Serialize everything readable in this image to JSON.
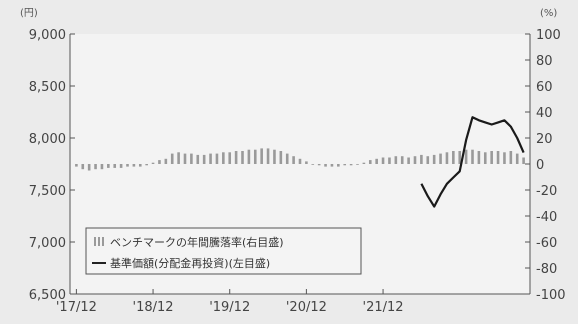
{
  "chart_data": {
    "type": "bar+line",
    "left_unit": "(円)",
    "right_unit": "(%)",
    "left_axis": {
      "min": 6500,
      "max": 9000,
      "ticks": [
        "6,500",
        "7,000",
        "7,500",
        "8,000",
        "8,500",
        "9,000"
      ]
    },
    "right_axis": {
      "min": -100,
      "max": 100,
      "ticks": [
        "-100",
        "-80",
        "-60",
        "-40",
        "-20",
        "0",
        "20",
        "40",
        "60",
        "80",
        "100"
      ]
    },
    "x_ticks": [
      "'17/12",
      "'18/12",
      "'19/12",
      "'20/12",
      "'21/12"
    ],
    "x_tick_positions_months": [
      0,
      12,
      24,
      36,
      48
    ],
    "x_range_months": [
      -1,
      71
    ],
    "legend": {
      "bar_label": "ベンチマークの年間騰落率(右目盛)",
      "line_label": "基準価額(分配金再投資)(左目盛)"
    },
    "series": [
      {
        "name": "ベンチマークの年間騰落率(右目盛)",
        "kind": "bar",
        "axis": "right",
        "x_months": [
          0,
          1,
          2,
          3,
          4,
          5,
          6,
          7,
          8,
          9,
          10,
          11,
          12,
          13,
          14,
          15,
          16,
          17,
          18,
          19,
          20,
          21,
          22,
          23,
          24,
          25,
          26,
          27,
          28,
          29,
          30,
          31,
          32,
          33,
          34,
          35,
          36,
          37,
          38,
          39,
          40,
          41,
          42,
          43,
          44,
          45,
          46,
          47,
          48,
          49,
          50,
          51,
          52,
          53,
          54,
          55,
          56,
          57,
          58,
          59,
          60,
          61,
          62,
          63,
          64,
          65,
          66,
          67,
          68,
          69,
          70
        ],
        "values": [
          -2,
          -4,
          -5,
          -4,
          -4,
          -3,
          -3,
          -3,
          -2,
          -2,
          -2,
          -1,
          1,
          3,
          4,
          8,
          9,
          8,
          8,
          7,
          7,
          8,
          8,
          9,
          9,
          10,
          10,
          11,
          11,
          12,
          12,
          11,
          10,
          8,
          6,
          4,
          2,
          0,
          -1,
          -2,
          -2,
          -2,
          -1,
          -1,
          0,
          1,
          3,
          4,
          5,
          5,
          6,
          6,
          5,
          6,
          7,
          6,
          7,
          8,
          9,
          10,
          10,
          11,
          11,
          10,
          9,
          10,
          10,
          9,
          10,
          8,
          5
        ]
      },
      {
        "name": "基準価額(分配金再投資)(左目盛)",
        "kind": "line",
        "axis": "left",
        "x_months": [
          54,
          55,
          56,
          57,
          58,
          59,
          60,
          61,
          62,
          63,
          64,
          65,
          66,
          67,
          68,
          69,
          70
        ],
        "values": [
          7560,
          7440,
          7340,
          7460,
          7560,
          7620,
          7680,
          7980,
          8200,
          8170,
          8150,
          8130,
          8150,
          8170,
          8110,
          8000,
          7860
        ]
      }
    ]
  }
}
